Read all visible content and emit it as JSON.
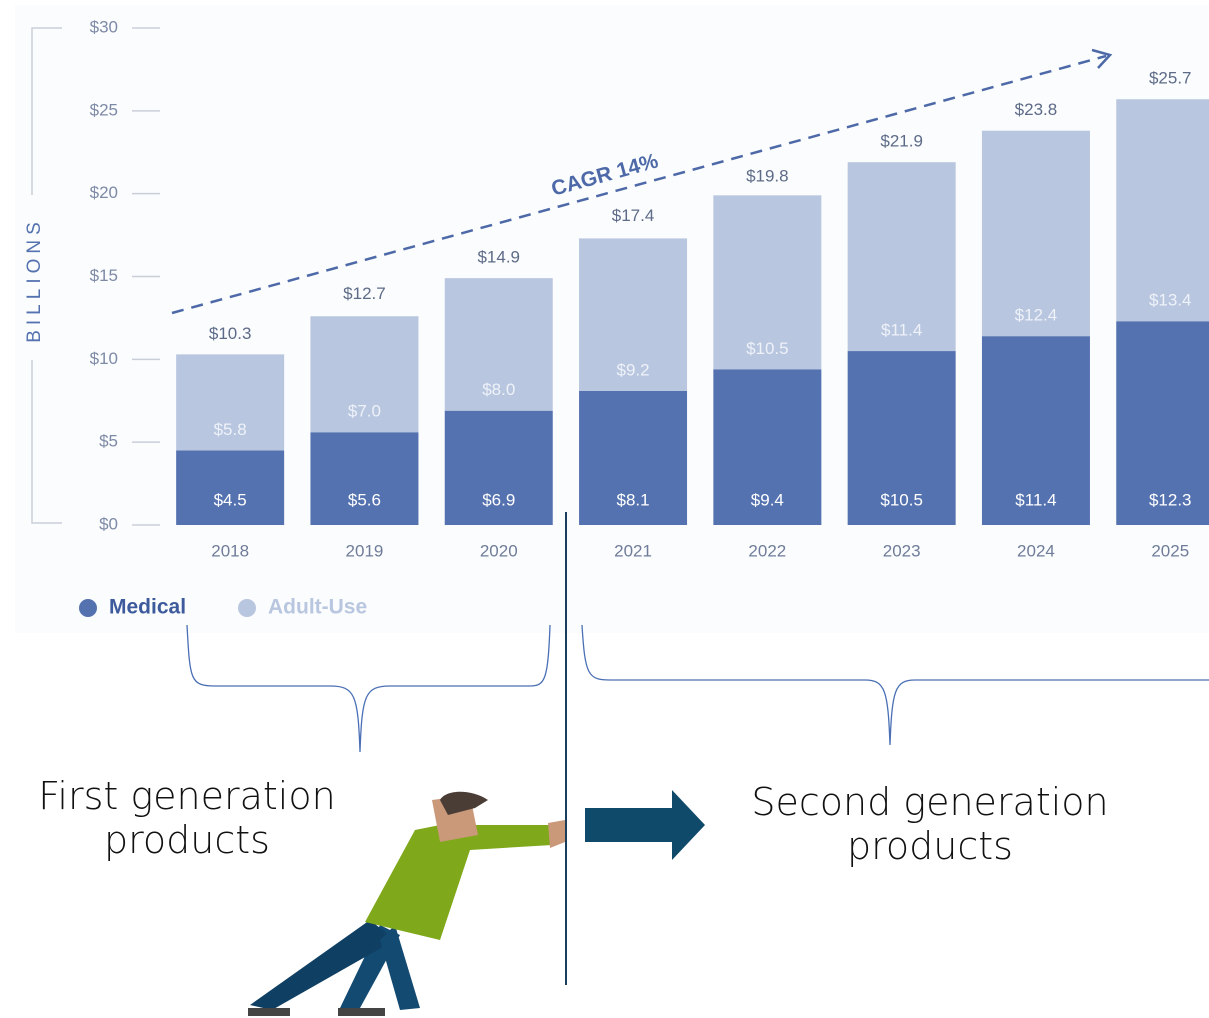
{
  "chart_data": {
    "type": "bar",
    "stacked": true,
    "y_label": "BILLIONS",
    "annotation": "CAGR 14%",
    "categories": [
      "2018",
      "2019",
      "2020",
      "2021",
      "2022",
      "2023",
      "2024",
      "2025"
    ],
    "series": [
      {
        "name": "Medical",
        "color": "#5572b0",
        "values": [
          4.5,
          5.6,
          6.9,
          8.1,
          9.4,
          10.5,
          11.4,
          12.3
        ],
        "value_labels": [
          "$4.5",
          "$5.6",
          "$6.9",
          "$8.1",
          "$9.4",
          "$10.5",
          "$11.4",
          "$12.3"
        ]
      },
      {
        "name": "Adult-Use",
        "color": "#b9c6df",
        "values": [
          5.8,
          7.0,
          8.0,
          9.2,
          10.5,
          11.4,
          12.4,
          13.4
        ],
        "value_labels": [
          "$5.8",
          "$7.0",
          "$8.0",
          "$9.2",
          "$10.5",
          "$11.4",
          "$12.4",
          "$13.4"
        ]
      }
    ],
    "totals": {
      "values": [
        10.3,
        12.7,
        14.9,
        17.4,
        19.8,
        21.9,
        23.8,
        25.7
      ],
      "value_labels": [
        "$10.3",
        "$12.7",
        "$14.9",
        "$17.4",
        "$19.8",
        "$21.9",
        "$23.8",
        "$25.7"
      ]
    },
    "ylim": [
      0,
      30
    ],
    "yticks": [
      {
        "value": 0,
        "label": "$0"
      },
      {
        "value": 5,
        "label": "$5"
      },
      {
        "value": 10,
        "label": "$10"
      },
      {
        "value": 15,
        "label": "$15"
      },
      {
        "value": 20,
        "label": "$20"
      },
      {
        "value": 25,
        "label": "$25"
      },
      {
        "value": 30,
        "label": "$30"
      }
    ],
    "legend": "bottom-left"
  },
  "labels": {
    "first": "First generation products",
    "second": "Second generation products"
  }
}
